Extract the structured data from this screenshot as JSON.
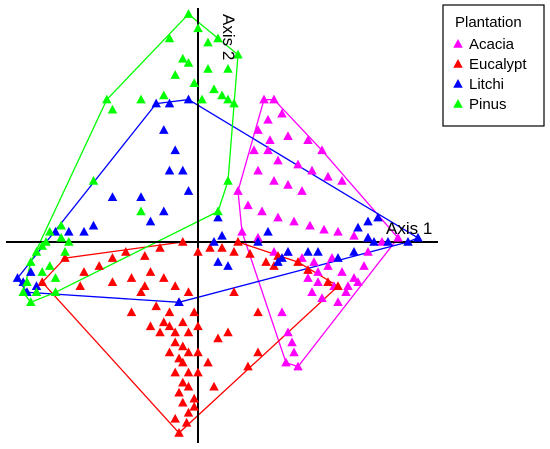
{
  "chart_data": {
    "type": "scatter",
    "title": "",
    "xlabel": "Axis 1",
    "ylabel": "Axis 2",
    "xlim": [
      -1.0,
      1.2
    ],
    "ylim": [
      -1.0,
      1.15
    ],
    "grid": false,
    "legend": {
      "title": "Plantation",
      "placement": "top-right"
    },
    "hulls": true,
    "series": [
      {
        "name": "Acacia",
        "color": "#ff00ff",
        "marker": "triangle",
        "points": [
          [
            0.33,
            0.7
          ],
          [
            0.38,
            0.7
          ],
          [
            0.3,
            0.55
          ],
          [
            0.35,
            0.6
          ],
          [
            0.42,
            0.63
          ],
          [
            0.28,
            0.45
          ],
          [
            0.36,
            0.5
          ],
          [
            0.45,
            0.52
          ],
          [
            0.55,
            0.5
          ],
          [
            0.62,
            0.45
          ],
          [
            0.5,
            0.38
          ],
          [
            0.57,
            0.35
          ],
          [
            0.65,
            0.32
          ],
          [
            0.72,
            0.3
          ],
          [
            0.3,
            0.35
          ],
          [
            0.38,
            0.3
          ],
          [
            0.45,
            0.28
          ],
          [
            0.52,
            0.25
          ],
          [
            0.2,
            0.25
          ],
          [
            0.25,
            0.18
          ],
          [
            0.32,
            0.15
          ],
          [
            0.4,
            0.12
          ],
          [
            0.48,
            0.1
          ],
          [
            0.56,
            0.08
          ],
          [
            0.63,
            0.06
          ],
          [
            0.7,
            0.05
          ],
          [
            0.78,
            0.03
          ],
          [
            0.85,
            0.02
          ],
          [
            0.92,
            0.0
          ],
          [
            0.22,
            0.05
          ],
          [
            0.3,
            0.02
          ],
          [
            0.38,
            -0.05
          ],
          [
            0.45,
            -0.05
          ],
          [
            0.52,
            -0.08
          ],
          [
            0.58,
            -0.1
          ],
          [
            0.65,
            -0.12
          ],
          [
            0.72,
            -0.15
          ],
          [
            0.78,
            -0.18
          ],
          [
            0.6,
            -0.2
          ],
          [
            0.68,
            -0.22
          ],
          [
            0.74,
            -0.25
          ],
          [
            0.62,
            -0.28
          ],
          [
            0.7,
            -0.3
          ],
          [
            0.75,
            -0.22
          ],
          [
            0.8,
            -0.2
          ],
          [
            0.42,
            -0.35
          ],
          [
            0.45,
            -0.45
          ],
          [
            0.47,
            -0.5
          ],
          [
            0.44,
            -0.6
          ],
          [
            0.5,
            -0.62
          ],
          [
            0.48,
            -0.55
          ],
          [
            0.55,
            -0.18
          ],
          [
            0.57,
            -0.25
          ],
          [
            0.6,
            -0.15
          ],
          [
            0.67,
            -0.08
          ],
          [
            0.83,
            -0.12
          ],
          [
            0.85,
            -0.05
          ],
          [
            1.0,
            0.02
          ],
          [
            0.35,
            0.45
          ],
          [
            0.4,
            0.4
          ]
        ]
      },
      {
        "name": "Eucalypt",
        "color": "#ff0000",
        "marker": "triangle",
        "points": [
          [
            -0.7,
            -0.08
          ],
          [
            -0.6,
            -0.15
          ],
          [
            -0.52,
            -0.12
          ],
          [
            -0.45,
            -0.08
          ],
          [
            -0.38,
            -0.05
          ],
          [
            -0.28,
            -0.07
          ],
          [
            -0.2,
            -0.03
          ],
          [
            -0.08,
            0.0
          ],
          [
            0.0,
            -0.05
          ],
          [
            0.06,
            -0.03
          ],
          [
            0.12,
            -0.03
          ],
          [
            0.18,
            -0.05
          ],
          [
            0.2,
            0.0
          ],
          [
            0.26,
            -0.06
          ],
          [
            0.34,
            -0.1
          ],
          [
            0.38,
            -0.12
          ],
          [
            0.4,
            -0.07
          ],
          [
            0.5,
            -0.1
          ],
          [
            0.55,
            -0.14
          ],
          [
            0.65,
            -0.2
          ],
          [
            0.7,
            -0.22
          ],
          [
            -0.82,
            -0.2
          ],
          [
            -0.62,
            -0.22
          ],
          [
            -0.45,
            -0.2
          ],
          [
            -0.35,
            -0.18
          ],
          [
            -0.3,
            -0.25
          ],
          [
            -0.25,
            -0.15
          ],
          [
            -0.18,
            -0.18
          ],
          [
            -0.12,
            -0.22
          ],
          [
            -0.05,
            -0.25
          ],
          [
            -0.22,
            -0.32
          ],
          [
            -0.15,
            -0.35
          ],
          [
            -0.1,
            -0.3
          ],
          [
            -0.02,
            -0.35
          ],
          [
            0.0,
            -0.42
          ],
          [
            -0.25,
            -0.42
          ],
          [
            -0.2,
            -0.45
          ],
          [
            -0.18,
            -0.4
          ],
          [
            -0.15,
            -0.42
          ],
          [
            -0.12,
            -0.45
          ],
          [
            -0.08,
            -0.4
          ],
          [
            -0.05,
            -0.45
          ],
          [
            -0.12,
            -0.5
          ],
          [
            -0.08,
            -0.52
          ],
          [
            -0.05,
            -0.55
          ],
          [
            -0.15,
            -0.55
          ],
          [
            -0.1,
            -0.58
          ],
          [
            -0.08,
            -0.6
          ],
          [
            -0.05,
            -0.65
          ],
          [
            -0.12,
            -0.65
          ],
          [
            -0.08,
            -0.7
          ],
          [
            -0.05,
            -0.72
          ],
          [
            -0.1,
            -0.75
          ],
          [
            0.0,
            -0.55
          ],
          [
            0.0,
            -0.65
          ],
          [
            0.05,
            -0.6
          ],
          [
            0.1,
            -0.48
          ],
          [
            0.15,
            -0.45
          ],
          [
            0.25,
            -0.62
          ],
          [
            0.3,
            -0.55
          ],
          [
            0.18,
            -0.25
          ],
          [
            0.3,
            -0.35
          ],
          [
            -0.08,
            -0.8
          ],
          [
            -0.05,
            -0.85
          ],
          [
            -0.02,
            -0.82
          ],
          [
            -0.12,
            -0.88
          ],
          [
            -0.06,
            -0.9
          ],
          [
            -0.02,
            -0.78
          ],
          [
            0.08,
            -0.72
          ],
          [
            -0.35,
            -0.35
          ],
          [
            -0.28,
            -0.22
          ],
          [
            -0.1,
            -0.95
          ]
        ]
      },
      {
        "name": "Litchi",
        "color": "#0000ff",
        "marker": "triangle",
        "points": [
          [
            -0.22,
            0.68
          ],
          [
            -0.15,
            0.68
          ],
          [
            -0.18,
            0.55
          ],
          [
            -0.12,
            0.45
          ],
          [
            -0.15,
            0.35
          ],
          [
            -0.08,
            0.35
          ],
          [
            -0.05,
            0.25
          ],
          [
            -0.3,
            0.22
          ],
          [
            -0.18,
            0.15
          ],
          [
            -0.25,
            0.1
          ],
          [
            -0.55,
            0.08
          ],
          [
            -0.6,
            0.05
          ],
          [
            -0.68,
            0.05
          ],
          [
            -0.75,
            0.05
          ],
          [
            -0.45,
            0.22
          ],
          [
            0.1,
            0.12
          ],
          [
            0.12,
            0.03
          ],
          [
            0.08,
            0.0
          ],
          [
            0.3,
            0.0
          ],
          [
            0.42,
            -0.08
          ],
          [
            0.45,
            -0.05
          ],
          [
            0.55,
            -0.05
          ],
          [
            0.6,
            -0.05
          ],
          [
            0.7,
            -0.08
          ],
          [
            0.78,
            -0.05
          ],
          [
            0.85,
            0.02
          ],
          [
            0.88,
            0.0
          ],
          [
            0.95,
            0.0
          ],
          [
            1.1,
            0.02
          ],
          [
            1.05,
            0.0
          ],
          [
            0.8,
            0.07
          ],
          [
            0.85,
            0.1
          ],
          [
            0.9,
            0.12
          ],
          [
            0.1,
            -0.1
          ],
          [
            0.15,
            -0.12
          ],
          [
            0.4,
            -0.1
          ],
          [
            -0.88,
            -0.15
          ],
          [
            -0.92,
            -0.2
          ],
          [
            -0.9,
            -0.25
          ],
          [
            -0.95,
            -0.18
          ],
          [
            -0.85,
            -0.22
          ],
          [
            -0.1,
            -0.3
          ],
          [
            0.35,
            0.05
          ],
          [
            -0.05,
            0.7
          ]
        ]
      },
      {
        "name": "Pinus",
        "color": "#00ff00",
        "marker": "triangle",
        "points": [
          [
            -0.05,
            1.12
          ],
          [
            0.0,
            1.05
          ],
          [
            0.1,
            1.0
          ],
          [
            0.2,
            0.92
          ],
          [
            -0.15,
            1.0
          ],
          [
            0.05,
            0.98
          ],
          [
            -0.05,
            0.88
          ],
          [
            0.05,
            0.85
          ],
          [
            0.15,
            0.85
          ],
          [
            -0.12,
            0.82
          ],
          [
            -0.02,
            0.78
          ],
          [
            0.08,
            0.75
          ],
          [
            0.12,
            0.72
          ],
          [
            -0.18,
            0.72
          ],
          [
            0.02,
            0.7
          ],
          [
            0.18,
            0.68
          ],
          [
            0.15,
            0.7
          ],
          [
            -0.48,
            0.7
          ],
          [
            -0.45,
            0.65
          ],
          [
            -0.55,
            0.3
          ],
          [
            -0.3,
            0.15
          ],
          [
            -0.72,
            0.08
          ],
          [
            -0.8,
            0.0
          ],
          [
            -0.85,
            -0.05
          ],
          [
            -0.88,
            -0.1
          ],
          [
            -0.82,
            -0.15
          ],
          [
            -0.78,
            -0.12
          ],
          [
            -0.9,
            -0.2
          ],
          [
            -0.85,
            -0.25
          ],
          [
            -0.88,
            -0.3
          ],
          [
            -0.75,
            -0.18
          ],
          [
            -0.75,
            -0.25
          ],
          [
            -0.82,
            -0.02
          ],
          [
            -0.78,
            0.05
          ],
          [
            -0.7,
            -0.05
          ],
          [
            -0.68,
            0.0
          ],
          [
            -0.92,
            -0.25
          ],
          [
            -0.72,
            0.02
          ],
          [
            0.15,
            0.3
          ],
          [
            0.1,
            0.15
          ],
          [
            -0.3,
            0.7
          ],
          [
            -0.08,
            0.9
          ]
        ]
      }
    ]
  }
}
